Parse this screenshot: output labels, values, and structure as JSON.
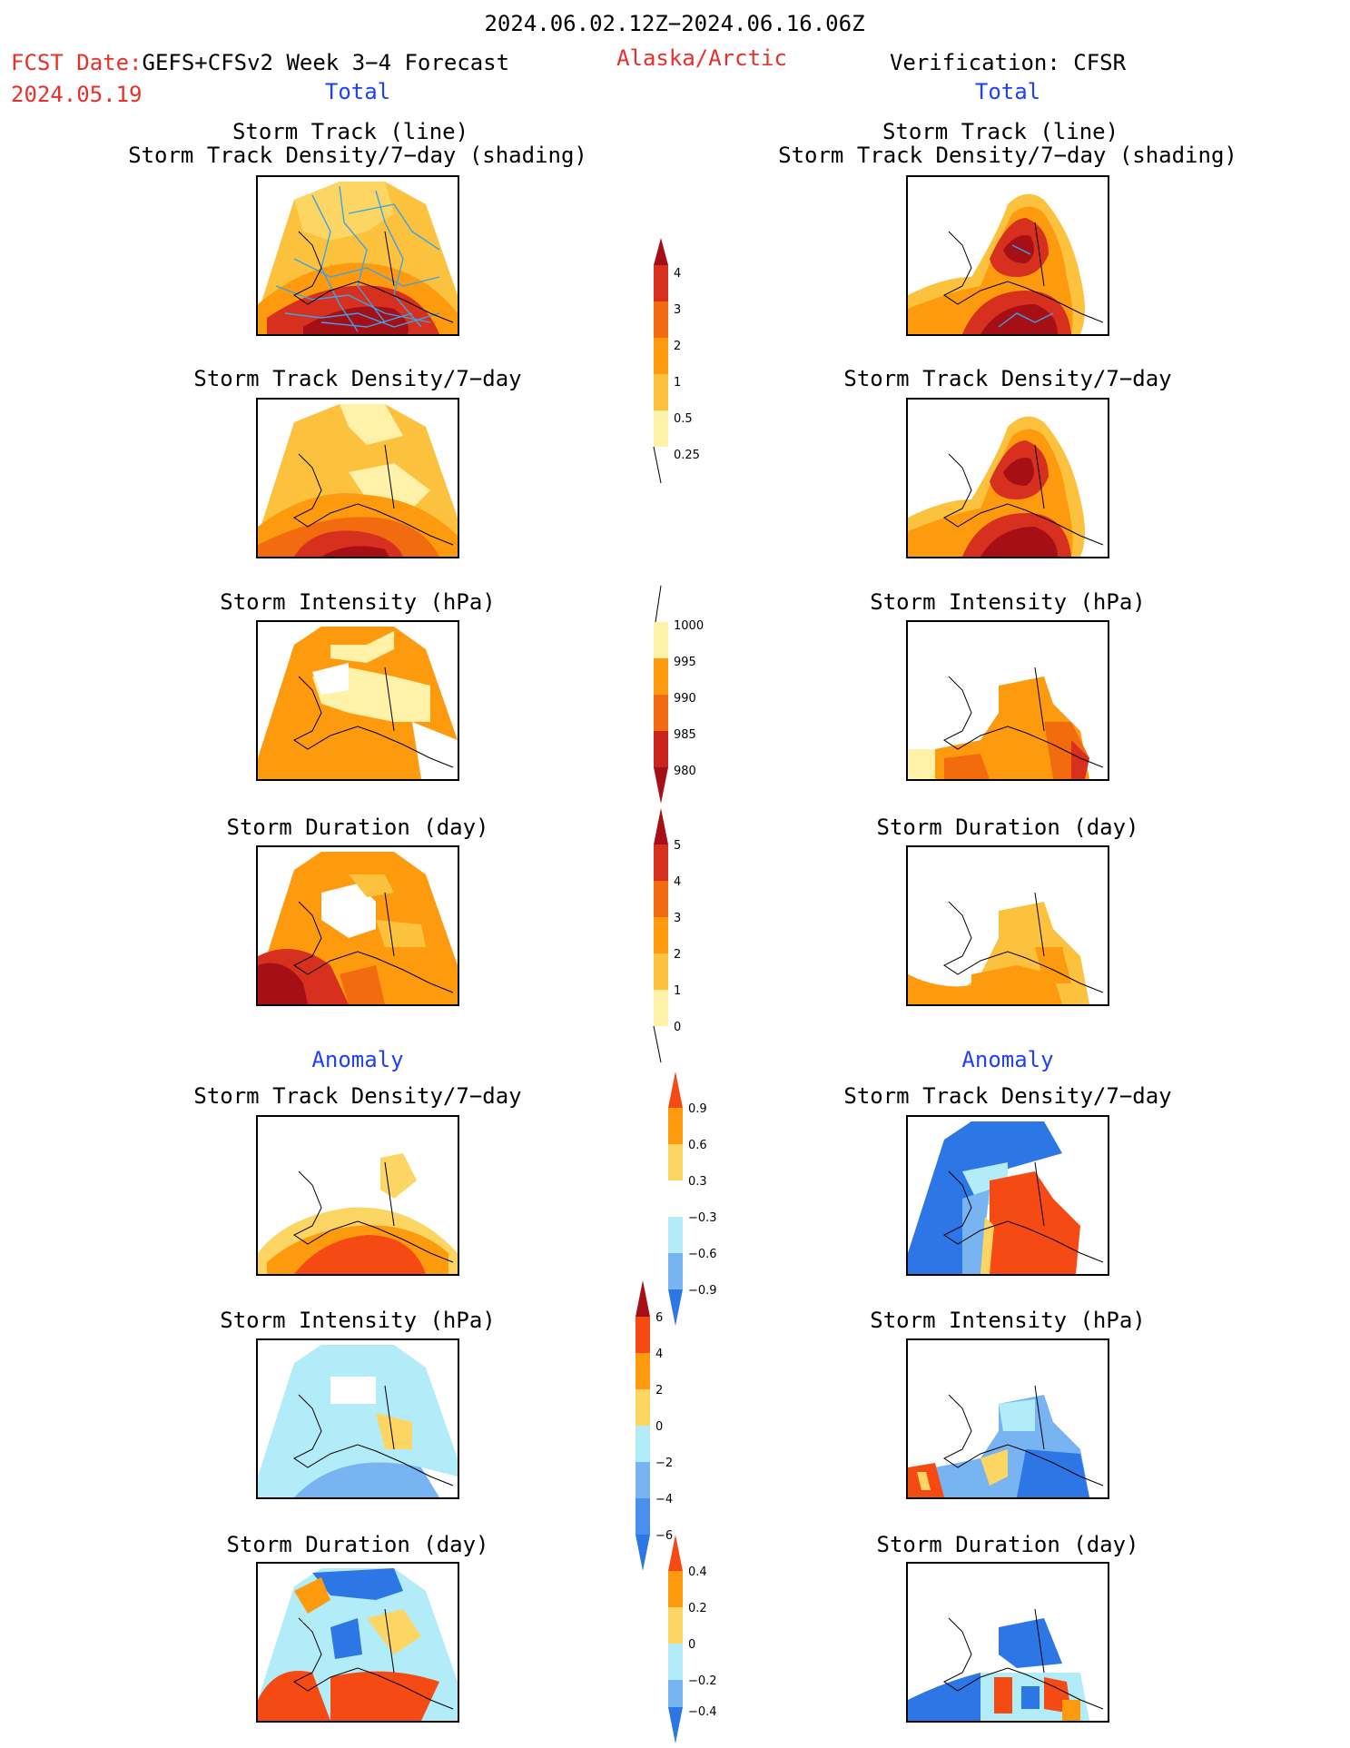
{
  "header": {
    "date_range": "2024.06.02.12Z−2024.06.16.06Z",
    "fcst_label": "FCST Date:",
    "fcst_model": "GEFS+CFSv2 Week 3−4 Forecast",
    "fcst_date": "2024.05.19",
    "region": "Alaska/Arctic",
    "verification": "Verification: CFSR",
    "total_left": "Total",
    "total_right": "Total",
    "anomaly_left": "Anomaly",
    "anomaly_right": "Anomaly"
  },
  "panel_titles": {
    "track_line": "Storm Track (line)",
    "track_shading": "Storm Track Density/7−day (shading)",
    "density": "Storm Track Density/7−day",
    "intensity": "Storm Intensity (hPa)",
    "duration": "Storm Duration (day)"
  },
  "colorbars": {
    "density": {
      "ticks": [
        "4",
        "3",
        "2",
        "1",
        "0.5",
        "0.25"
      ],
      "colors": [
        "#a50f15",
        "#d7301f",
        "#f26c0f",
        "#fd9a0e",
        "#fcc13d",
        "#fff1a8"
      ]
    },
    "intensity": {
      "ticks": [
        "1000",
        "995",
        "990",
        "985",
        "980"
      ],
      "colors": [
        "#fff1a8",
        "#fd9a0e",
        "#f26c0f",
        "#c9231b",
        "#a50f15"
      ]
    },
    "duration": {
      "ticks": [
        "5",
        "4",
        "3",
        "2",
        "1",
        "0"
      ],
      "colors": [
        "#a50f15",
        "#d7301f",
        "#f26c0f",
        "#fd9a0e",
        "#fcc13d",
        "#fff1a8"
      ]
    },
    "anom_density": {
      "ticks": [
        "0.9",
        "0.6",
        "0.3",
        "−0.3",
        "−0.6",
        "−0.9"
      ],
      "colors": [
        "#f64a14",
        "#fd9a0e",
        "#fcd562",
        "#ffffff",
        "#b2ecf8",
        "#78b4f2",
        "#2c76e6"
      ]
    },
    "anom_intensity": {
      "ticks": [
        "6",
        "4",
        "2",
        "0",
        "−2",
        "−4",
        "−6"
      ],
      "colors": [
        "#a50f15",
        "#f64a14",
        "#fd9a0e",
        "#fcd562",
        "#b2ecf8",
        "#78b4f2",
        "#4a90ec",
        "#2c76e6"
      ]
    },
    "anom_duration": {
      "ticks": [
        "0.4",
        "0.2",
        "0",
        "−0.2",
        "−0.4"
      ],
      "colors": [
        "#f64a14",
        "#fd9a0e",
        "#fcd562",
        "#b2ecf8",
        "#78b4f2",
        "#2c76e6"
      ]
    }
  }
}
